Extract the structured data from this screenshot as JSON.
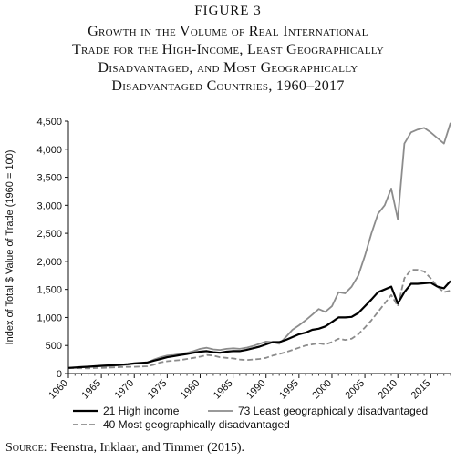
{
  "figure_label": "FIGURE 3",
  "title_lines": [
    "Growth in the Volume of Real International",
    "Trade for the High-Income, Least Geographically",
    "Disadvantaged, and Most Geographically",
    "Disadvantaged Countries, 1960–2017"
  ],
  "source": {
    "lead": "Source:",
    "text": " Feenstra, Inklaar, and Timmer (2015)."
  },
  "chart_data": {
    "type": "line",
    "ylabel": "Index of Total $ Value of Trade (1960 = 100)",
    "xlabel": "",
    "xlim": [
      1960,
      2018
    ],
    "ylim": [
      0,
      4500
    ],
    "x_ticks": [
      "1960",
      "1965",
      "1970",
      "1975",
      "1980",
      "1985",
      "1990",
      "1995",
      "2000",
      "2005",
      "2010",
      "2015"
    ],
    "y_ticks": [
      "0",
      "500",
      "1,000",
      "1,500",
      "2,000",
      "2,500",
      "3,000",
      "3,500",
      "4,000",
      "4,500"
    ],
    "grid": false,
    "legend_position": "bottom",
    "series": [
      {
        "name": "21 High income",
        "color": "#000000",
        "dash": "solid",
        "x": [
          1960,
          1961,
          1962,
          1963,
          1964,
          1965,
          1966,
          1967,
          1968,
          1969,
          1970,
          1971,
          1972,
          1973,
          1974,
          1975,
          1976,
          1977,
          1978,
          1979,
          1980,
          1981,
          1982,
          1983,
          1984,
          1985,
          1986,
          1987,
          1988,
          1989,
          1990,
          1991,
          1992,
          1993,
          1994,
          1995,
          1996,
          1997,
          1998,
          1999,
          2000,
          2001,
          2002,
          2003,
          2004,
          2005,
          2006,
          2007,
          2008,
          2009,
          2010,
          2011,
          2012,
          2013,
          2014,
          2015,
          2016,
          2017,
          2018
        ],
        "values": [
          100,
          108,
          115,
          122,
          130,
          138,
          145,
          150,
          158,
          168,
          180,
          188,
          198,
          230,
          260,
          290,
          310,
          330,
          350,
          370,
          390,
          400,
          380,
          370,
          390,
          400,
          400,
          420,
          450,
          480,
          520,
          560,
          560,
          600,
          650,
          700,
          730,
          780,
          800,
          840,
          920,
          1000,
          1000,
          1010,
          1080,
          1200,
          1320,
          1450,
          1500,
          1550,
          1250,
          1450,
          1600,
          1600,
          1610,
          1620,
          1550,
          1520,
          1650
        ]
      },
      {
        "name": "73 Least geographically disadvantaged",
        "color": "#8c8c8c",
        "dash": "solid",
        "x": [
          1960,
          1961,
          1962,
          1963,
          1964,
          1965,
          1966,
          1967,
          1968,
          1969,
          1970,
          1971,
          1972,
          1973,
          1974,
          1975,
          1976,
          1977,
          1978,
          1979,
          1980,
          1981,
          1982,
          1983,
          1984,
          1985,
          1986,
          1987,
          1988,
          1989,
          1990,
          1991,
          1992,
          1993,
          1994,
          1995,
          1996,
          1997,
          1998,
          1999,
          2000,
          2001,
          2002,
          2003,
          2004,
          2005,
          2006,
          2007,
          2008,
          2009,
          2010,
          2011,
          2012,
          2013,
          2014,
          2015,
          2016,
          2017,
          2018
        ],
        "values": [
          100,
          105,
          110,
          118,
          125,
          132,
          138,
          142,
          150,
          160,
          175,
          182,
          195,
          250,
          290,
          320,
          330,
          350,
          370,
          400,
          440,
          460,
          430,
          420,
          440,
          450,
          440,
          460,
          490,
          530,
          570,
          560,
          530,
          650,
          780,
          860,
          950,
          1050,
          1150,
          1100,
          1200,
          1450,
          1430,
          1550,
          1750,
          2100,
          2500,
          2850,
          3000,
          3300,
          2750,
          4100,
          4300,
          4350,
          4380,
          4300,
          4200,
          4100,
          4470
        ]
      },
      {
        "name": "40 Most geographically disadvantaged",
        "color": "#8c8c8c",
        "dash": "dashed",
        "x": [
          1960,
          1961,
          1962,
          1963,
          1964,
          1965,
          1966,
          1967,
          1968,
          1969,
          1970,
          1971,
          1972,
          1973,
          1974,
          1975,
          1976,
          1977,
          1978,
          1979,
          1980,
          1981,
          1982,
          1983,
          1984,
          1985,
          1986,
          1987,
          1988,
          1989,
          1990,
          1991,
          1992,
          1993,
          1994,
          1995,
          1996,
          1997,
          1998,
          1999,
          2000,
          2001,
          2002,
          2003,
          2004,
          2005,
          2006,
          2007,
          2008,
          2009,
          2010,
          2011,
          2012,
          2013,
          2014,
          2015,
          2016,
          2017,
          2018
        ],
        "values": [
          100,
          98,
          95,
          92,
          98,
          100,
          105,
          110,
          115,
          118,
          120,
          125,
          130,
          160,
          200,
          220,
          230,
          240,
          260,
          280,
          300,
          330,
          320,
          290,
          280,
          270,
          250,
          240,
          250,
          260,
          280,
          320,
          350,
          380,
          420,
          460,
          500,
          520,
          540,
          520,
          560,
          620,
          600,
          620,
          700,
          820,
          950,
          1100,
          1250,
          1400,
          1200,
          1700,
          1850,
          1850,
          1820,
          1700,
          1550,
          1450,
          1480
        ]
      }
    ]
  }
}
